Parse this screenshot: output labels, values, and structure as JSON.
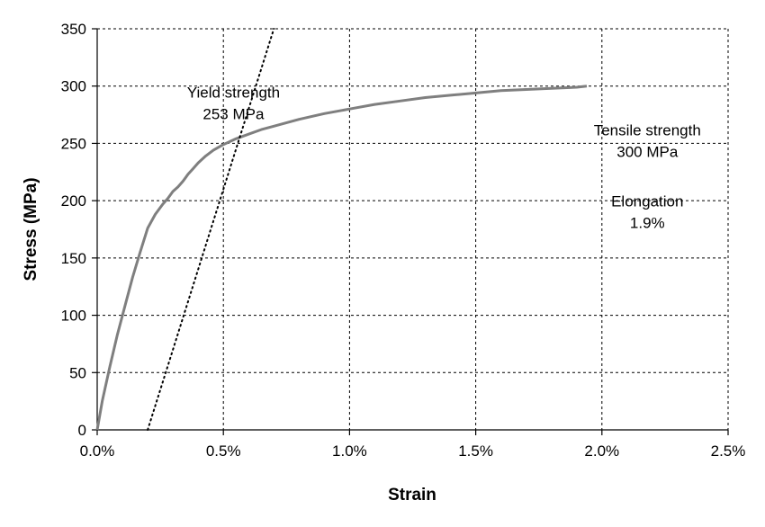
{
  "chart_data": {
    "type": "line",
    "title": "",
    "xlabel": "Strain",
    "ylabel": "Stress (MPa)",
    "xlim": [
      0,
      2.5
    ],
    "ylim": [
      0,
      350
    ],
    "x_unit": "%",
    "x_ticks": [
      0,
      0.5,
      1.0,
      1.5,
      2.0,
      2.5
    ],
    "x_tick_labels": [
      "0.0%",
      "0.5%",
      "1.0%",
      "1.5%",
      "2.0%",
      "2.5%"
    ],
    "y_ticks": [
      0,
      50,
      100,
      150,
      200,
      250,
      300,
      350
    ],
    "y_tick_labels": [
      "0",
      "50",
      "100",
      "150",
      "200",
      "250",
      "300",
      "350"
    ],
    "grid": true,
    "legend": "none",
    "colors": {
      "curve": "#7f7f7f",
      "offset_line": "#000000",
      "grid": "#000000"
    },
    "series": [
      {
        "style": "solid",
        "x": [
          0,
          0.02,
          0.05,
          0.08,
          0.11,
          0.14,
          0.17,
          0.2,
          0.23,
          0.26,
          0.28,
          0.3,
          0.32,
          0.34,
          0.35,
          0.36,
          0.38,
          0.4,
          0.43,
          0.46,
          0.5,
          0.55,
          0.6,
          0.65,
          0.7,
          0.8,
          0.9,
          1.0,
          1.1,
          1.2,
          1.3,
          1.4,
          1.5,
          1.6,
          1.7,
          1.8,
          1.9,
          1.94
        ],
        "y": [
          0,
          25,
          55,
          83,
          108,
          133,
          155,
          176,
          188,
          197,
          202,
          208,
          212,
          217,
          220,
          223,
          228,
          233,
          239,
          244,
          249,
          254,
          258,
          262,
          265,
          271,
          276,
          280,
          284,
          287,
          290,
          292,
          294,
          296,
          297,
          298,
          299,
          300
        ]
      },
      {
        "style": "dotted",
        "x": [
          0.2,
          0.7
        ],
        "y": [
          0,
          350
        ]
      }
    ],
    "annotations": [
      {
        "lines": [
          "Yield strength",
          "253 MPa"
        ],
        "x": 0.54,
        "y": 290
      },
      {
        "lines": [
          "Tensile strength",
          "300 MPa"
        ],
        "x": 2.18,
        "y": 257
      },
      {
        "lines": [
          "Elongation",
          "1.9%"
        ],
        "x": 2.18,
        "y": 195
      }
    ]
  }
}
